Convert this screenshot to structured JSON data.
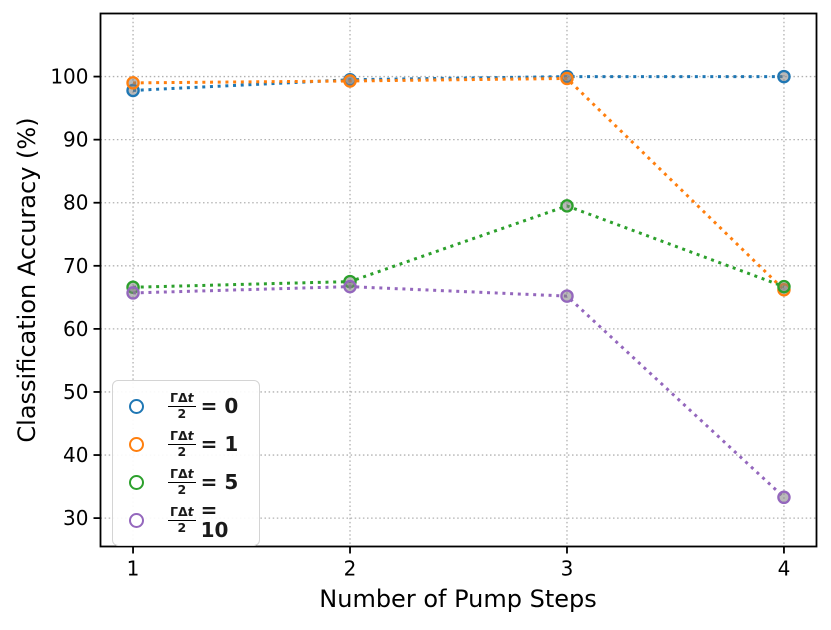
{
  "figure": {
    "background": "#ffffff",
    "grid_color": "#b0b0b0",
    "spine_color": "#000000",
    "marker_face": "rgba(128,128,128,0.55)"
  },
  "chart_data": {
    "type": "line",
    "title": "",
    "xlabel": "Number of Pump Steps",
    "ylabel": "Classification Accuracy (%)",
    "x": [
      1,
      2,
      3,
      4
    ],
    "xticks": [
      "1",
      "2",
      "3",
      "4"
    ],
    "yticks": [
      "30",
      "40",
      "50",
      "60",
      "70",
      "80",
      "90",
      "100"
    ],
    "ytick_values": [
      30,
      40,
      50,
      60,
      70,
      80,
      90,
      100
    ],
    "xlim": [
      0.85,
      4.15
    ],
    "ylim": [
      25.5,
      110
    ],
    "grid": true,
    "line_style": "dotted",
    "legend_position": "lower-left",
    "series": [
      {
        "name": "ΓΔt/2 = 0",
        "color": "#1f77b4",
        "values": [
          97.8,
          99.5,
          100.0,
          100.0
        ],
        "legend": {
          "frac_num_roman": "ΓΔ",
          "frac_num_italic": "t",
          "frac_den": "2",
          "rhs": "= 0"
        }
      },
      {
        "name": "ΓΔt/2 = 1",
        "color": "#ff7f0e",
        "values": [
          99.0,
          99.3,
          99.7,
          66.2
        ],
        "legend": {
          "frac_num_roman": "ΓΔ",
          "frac_num_italic": "t",
          "frac_den": "2",
          "rhs": "= 1"
        }
      },
      {
        "name": "ΓΔt/2 = 5",
        "color": "#2ca02c",
        "values": [
          66.6,
          67.5,
          79.5,
          66.7
        ],
        "legend": {
          "frac_num_roman": "ΓΔ",
          "frac_num_italic": "t",
          "frac_den": "2",
          "rhs": "= 5"
        }
      },
      {
        "name": "ΓΔt/2 = 10",
        "color": "#9467bd",
        "values": [
          65.7,
          66.7,
          65.2,
          33.3
        ],
        "legend": {
          "frac_num_roman": "ΓΔ",
          "frac_num_italic": "t",
          "frac_den": "2",
          "rhs": "= 10"
        }
      }
    ]
  }
}
